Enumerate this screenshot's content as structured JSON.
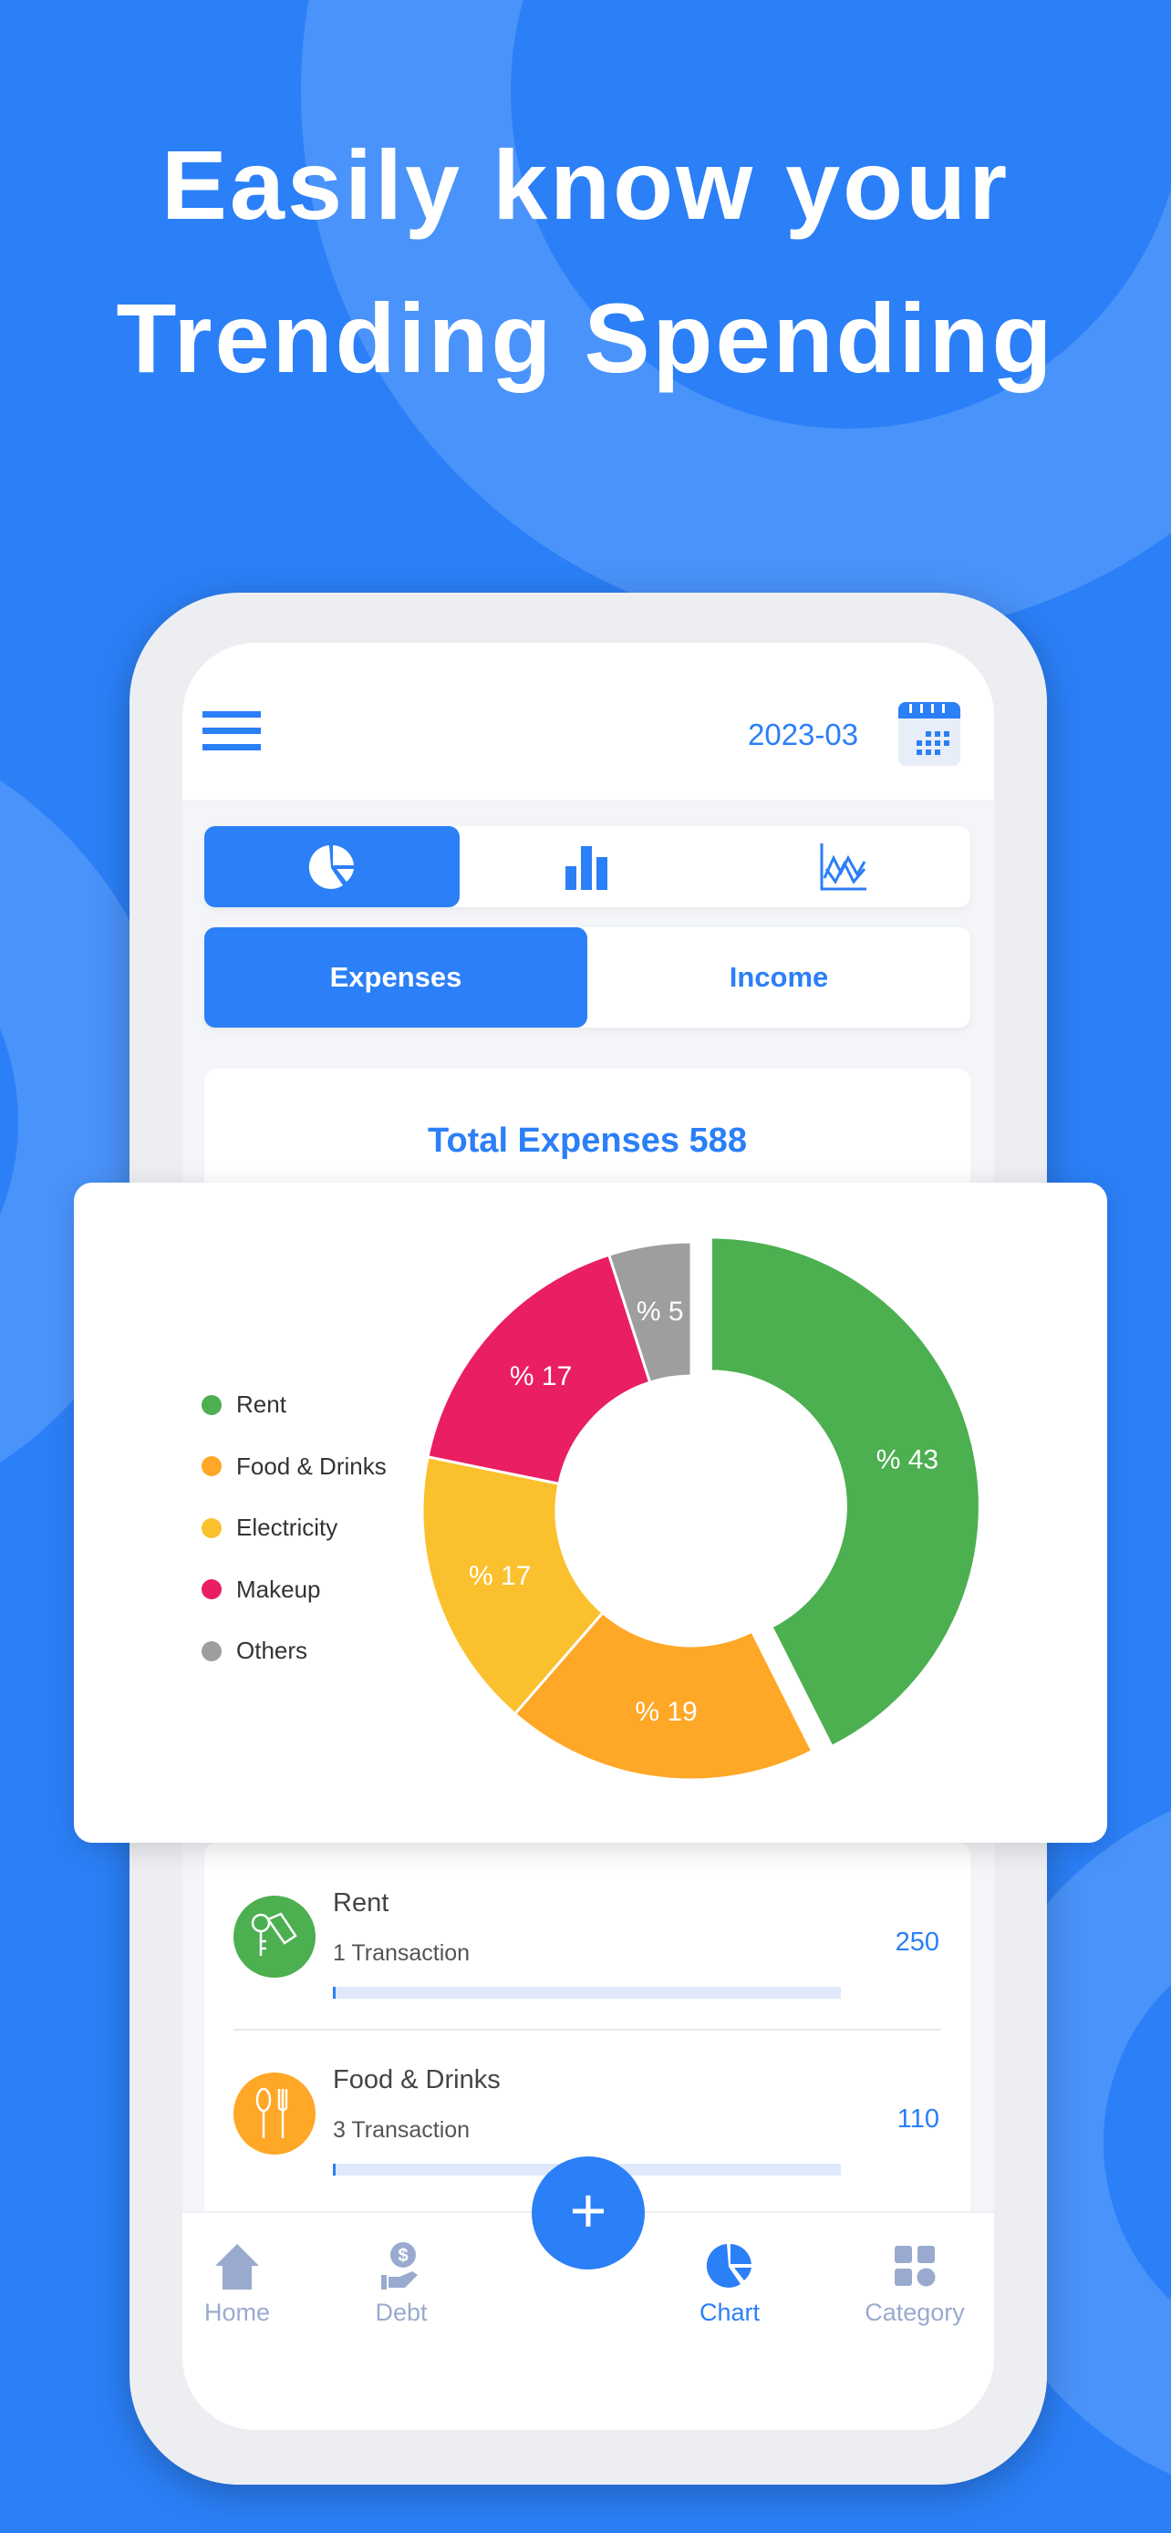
{
  "headline": {
    "line1": "Easily know your",
    "line2": "Trending Spending"
  },
  "header": {
    "date": "2023-03",
    "menu_icon": "hamburger-icon",
    "calendar_icon": "calendar-icon"
  },
  "chart_tabs": [
    {
      "icon": "pie-chart-icon",
      "selected": true
    },
    {
      "icon": "bar-chart-icon",
      "selected": false
    },
    {
      "icon": "line-chart-icon",
      "selected": false
    }
  ],
  "type_toggle": {
    "expenses": "Expenses",
    "income": "Income",
    "selected": "Expenses"
  },
  "total": {
    "label": "Total Expenses 588"
  },
  "colors": {
    "accent": "#2b7ff7",
    "Rent": "#4caf50",
    "Food & Drinks": "#ffa726",
    "Electricity": "#fbc02d",
    "Makeup": "#e91e63",
    "Others": "#9e9e9e"
  },
  "chart_data": {
    "type": "pie",
    "donut": true,
    "legend_position": "left",
    "categories": [
      "Rent",
      "Food & Drinks",
      "Electricity",
      "Makeup",
      "Others"
    ],
    "values": [
      43,
      19,
      17,
      17,
      5
    ],
    "labels": [
      "% 43",
      "% 19",
      "% 17",
      "% 17",
      "% 5"
    ],
    "colors": [
      "#4caf50",
      "#ffa726",
      "#fbc02d",
      "#e91e63",
      "#9e9e9e"
    ]
  },
  "list": [
    {
      "name": "Rent",
      "sub": "1 Transaction",
      "amount": "250",
      "icon": "key-tag-icon",
      "color": "#4caf50",
      "progress": 0.005
    },
    {
      "name": "Food & Drinks",
      "sub": "3 Transaction",
      "amount": "110",
      "icon": "spoon-fork-icon",
      "color": "#ffa726",
      "progress": 0.005
    }
  ],
  "nav": {
    "home": "Home",
    "debt": "Debt",
    "chart": "Chart",
    "category": "Category",
    "fab": "+",
    "active": "Chart"
  }
}
